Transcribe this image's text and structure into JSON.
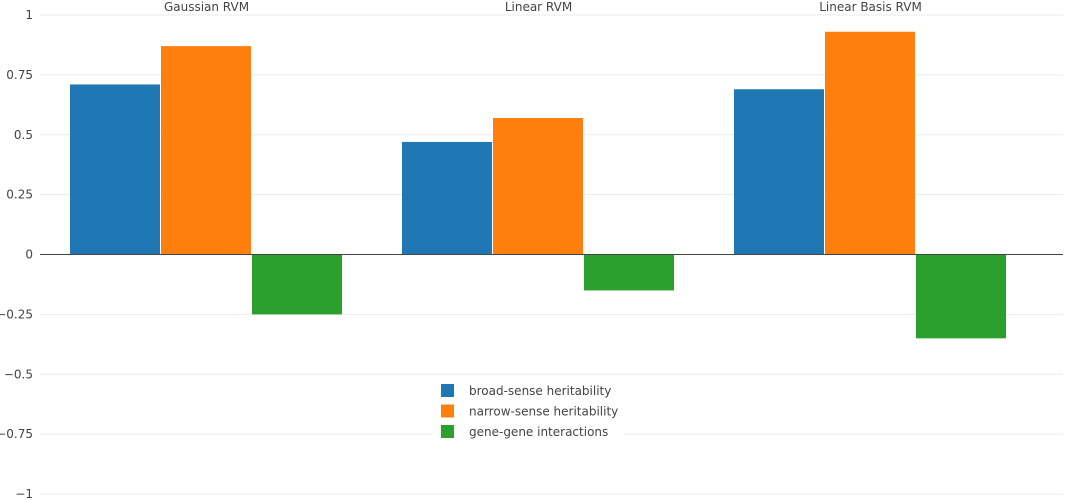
{
  "chart_data": {
    "type": "bar",
    "categories": [
      "Gaussian RVM",
      "Linear RVM",
      "Linear Basis RVM"
    ],
    "series": [
      {
        "name": "broad-sense heritability",
        "color": "#1f77b4",
        "values": [
          0.71,
          0.47,
          0.69
        ]
      },
      {
        "name": "narrow-sense heritability",
        "color": "#ff7f0e",
        "values": [
          0.87,
          0.57,
          0.93
        ]
      },
      {
        "name": "gene-gene interactions",
        "color": "#2ca02c",
        "values": [
          -0.25,
          -0.15,
          -0.35
        ]
      }
    ],
    "ylim": [
      -1,
      1
    ],
    "yticks": [
      1,
      0.75,
      0.5,
      0.25,
      0,
      -0.25,
      -0.5,
      -0.75,
      -1
    ],
    "ytick_labels": [
      "1",
      "0.75",
      "0.5",
      "0.25",
      "0",
      "−0.25",
      "−0.5",
      "−0.75",
      "−1"
    ],
    "grid": true,
    "legend": "bottom-center",
    "title": "",
    "xlabel": "",
    "ylabel": ""
  }
}
